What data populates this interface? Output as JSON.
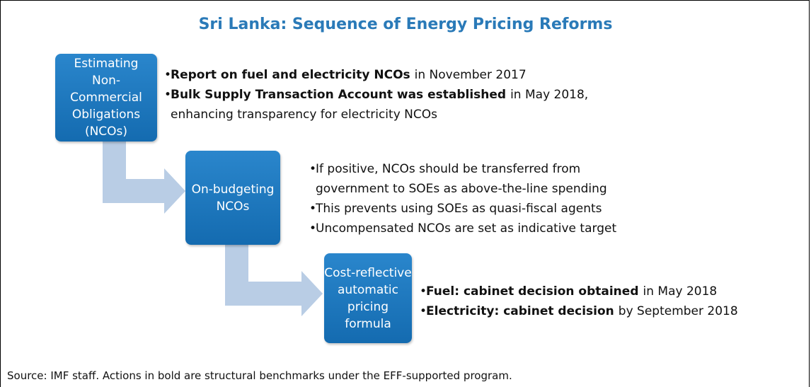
{
  "title": "Sri Lanka: Sequence of Energy Pricing Reforms",
  "steps": [
    {
      "label": [
        "Estimating",
        "Non-",
        "Commercial",
        "Obligations",
        "(NCOs)"
      ],
      "bullets": [
        {
          "bold": "Report on fuel and electricity NCOs",
          "text": "in November 2017"
        },
        {
          "bold": "Bulk Supply Transaction Account was established",
          "text": "in May 2018, enhancing transparency for electricity NCOs"
        }
      ]
    },
    {
      "label": [
        "On-budgeting",
        "NCOs"
      ],
      "bullets": [
        {
          "text": "If positive, NCOs should be transferred from government to SOEs as above-the-line spending"
        },
        {
          "text": "This prevents using SOEs as quasi-fiscal agents"
        },
        {
          "text": "Uncompensated NCOs are set as indicative target"
        }
      ]
    },
    {
      "label": [
        "Cost-reflective",
        "automatic",
        "pricing",
        "formula"
      ],
      "bullets": [
        {
          "bold": "Fuel: cabinet decision obtained",
          "text": "in May 2018"
        },
        {
          "bold": "Electricity: cabinet decision",
          "text": "by September 2018"
        }
      ]
    }
  ],
  "source": "Source: IMF staff. Actions in bold are structural benchmarks under the EFF-supported program."
}
